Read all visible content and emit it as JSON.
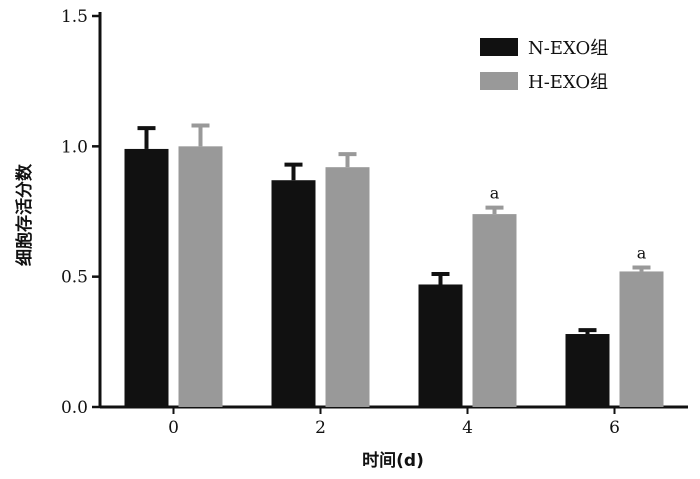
{
  "chart_data": {
    "type": "bar",
    "title": "",
    "xlabel": "时间(d)",
    "ylabel": "细胞存活分数",
    "categories": [
      "0",
      "2",
      "4",
      "6"
    ],
    "ylim": [
      0,
      1.5
    ],
    "yticks": [
      "0.0",
      "0.5",
      "1.0",
      "1.5"
    ],
    "grid": false,
    "legend_position": "top-right",
    "series": [
      {
        "name": "N-EXO组",
        "color": "#111111",
        "values": [
          0.99,
          0.87,
          0.47,
          0.28
        ],
        "errors": [
          0.08,
          0.06,
          0.04,
          0.015
        ]
      },
      {
        "name": "H-EXO组",
        "color": "#999999",
        "values": [
          1.0,
          0.92,
          0.74,
          0.52
        ],
        "errors": [
          0.08,
          0.05,
          0.025,
          0.015
        ]
      }
    ],
    "annotations": [
      {
        "category": "4",
        "series": "H-EXO组",
        "text": "a"
      },
      {
        "category": "6",
        "series": "H-EXO组",
        "text": "a"
      }
    ]
  }
}
